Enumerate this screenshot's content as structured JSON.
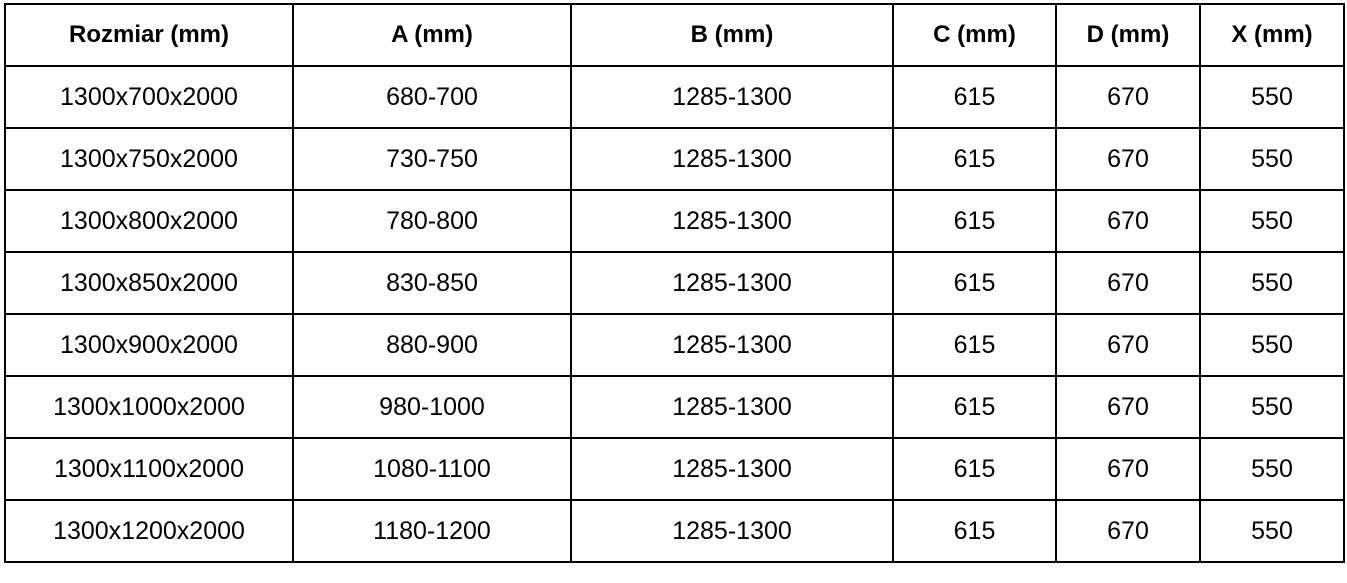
{
  "headers": [
    "Rozmiar (mm)",
    "A (mm)",
    "B (mm)",
    "C (mm)",
    "D (mm)",
    "X (mm)"
  ],
  "rows": [
    [
      "1300x700x2000",
      "680-700",
      "1285-1300",
      "615",
      "670",
      "550"
    ],
    [
      "1300x750x2000",
      "730-750",
      "1285-1300",
      "615",
      "670",
      "550"
    ],
    [
      "1300x800x2000",
      "780-800",
      "1285-1300",
      "615",
      "670",
      "550"
    ],
    [
      "1300x850x2000",
      "830-850",
      "1285-1300",
      "615",
      "670",
      "550"
    ],
    [
      "1300x900x2000",
      "880-900",
      "1285-1300",
      "615",
      "670",
      "550"
    ],
    [
      "1300x1000x2000",
      "980-1000",
      "1285-1300",
      "615",
      "670",
      "550"
    ],
    [
      "1300x1100x2000",
      "1080-1100",
      "1285-1300",
      "615",
      "670",
      "550"
    ],
    [
      "1300x1200x2000",
      "1180-1200",
      "1285-1300",
      "615",
      "670",
      "550"
    ]
  ]
}
